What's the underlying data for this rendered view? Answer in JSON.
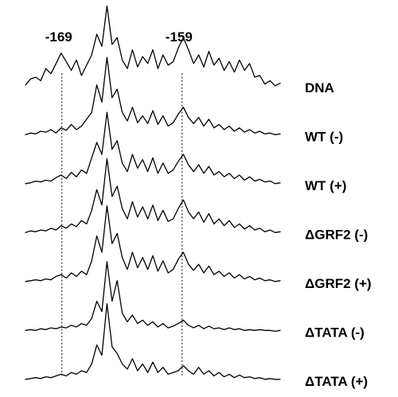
{
  "chart_data": {
    "type": "line",
    "title": "",
    "xlabel": "",
    "ylabel": "",
    "markers": [
      {
        "label": "-169",
        "x": 0.143
      },
      {
        "label": "-159",
        "x": 0.615
      }
    ],
    "x": [
      0,
      0.02,
      0.04,
      0.06,
      0.08,
      0.1,
      0.12,
      0.14,
      0.16,
      0.18,
      0.2,
      0.22,
      0.24,
      0.26,
      0.28,
      0.3,
      0.32,
      0.34,
      0.36,
      0.38,
      0.4,
      0.42,
      0.44,
      0.46,
      0.48,
      0.5,
      0.52,
      0.54,
      0.56,
      0.58,
      0.6,
      0.62,
      0.64,
      0.66,
      0.68,
      0.7,
      0.72,
      0.74,
      0.76,
      0.78,
      0.8,
      0.82,
      0.84,
      0.86,
      0.88,
      0.9,
      0.92,
      0.94,
      0.96,
      0.98,
      1.0
    ],
    "series": [
      {
        "name": "DNA",
        "values": [
          0.03,
          0.1,
          0.12,
          0.08,
          0.22,
          0.16,
          0.28,
          0.4,
          0.3,
          0.2,
          0.32,
          0.14,
          0.26,
          0.38,
          0.62,
          0.48,
          0.95,
          0.5,
          0.58,
          0.32,
          0.22,
          0.44,
          0.24,
          0.36,
          0.28,
          0.44,
          0.22,
          0.38,
          0.26,
          0.3,
          0.46,
          0.58,
          0.44,
          0.28,
          0.38,
          0.24,
          0.42,
          0.26,
          0.34,
          0.2,
          0.3,
          0.18,
          0.32,
          0.2,
          0.28,
          0.12,
          0.14,
          0.04,
          0.08,
          0.02,
          0.05
        ]
      },
      {
        "name": "WT (-)",
        "values": [
          0.02,
          0.04,
          0.03,
          0.06,
          0.05,
          0.08,
          0.04,
          0.1,
          0.07,
          0.14,
          0.08,
          0.12,
          0.2,
          0.28,
          0.6,
          0.4,
          0.92,
          0.45,
          0.55,
          0.28,
          0.18,
          0.34,
          0.16,
          0.24,
          0.15,
          0.3,
          0.14,
          0.24,
          0.12,
          0.16,
          0.26,
          0.34,
          0.22,
          0.15,
          0.22,
          0.12,
          0.2,
          0.1,
          0.14,
          0.08,
          0.12,
          0.06,
          0.1,
          0.05,
          0.08,
          0.04,
          0.06,
          0.03,
          0.04,
          0.02,
          0.03
        ]
      },
      {
        "name": "WT (+)",
        "values": [
          0.02,
          0.03,
          0.05,
          0.04,
          0.06,
          0.05,
          0.09,
          0.12,
          0.08,
          0.15,
          0.1,
          0.18,
          0.14,
          0.32,
          0.5,
          0.36,
          0.85,
          0.42,
          0.52,
          0.26,
          0.16,
          0.36,
          0.2,
          0.3,
          0.16,
          0.32,
          0.14,
          0.26,
          0.14,
          0.18,
          0.28,
          0.36,
          0.24,
          0.16,
          0.24,
          0.14,
          0.22,
          0.12,
          0.16,
          0.1,
          0.14,
          0.08,
          0.12,
          0.06,
          0.1,
          0.05,
          0.07,
          0.04,
          0.05,
          0.02,
          0.03
        ]
      },
      {
        "name": "ΔGRF2 (-)",
        "values": [
          0.02,
          0.04,
          0.03,
          0.05,
          0.04,
          0.07,
          0.05,
          0.1,
          0.07,
          0.12,
          0.09,
          0.16,
          0.12,
          0.28,
          0.52,
          0.34,
          0.88,
          0.44,
          0.56,
          0.3,
          0.18,
          0.38,
          0.2,
          0.32,
          0.18,
          0.34,
          0.16,
          0.28,
          0.15,
          0.18,
          0.3,
          0.4,
          0.26,
          0.18,
          0.26,
          0.14,
          0.24,
          0.12,
          0.18,
          0.1,
          0.16,
          0.08,
          0.12,
          0.06,
          0.1,
          0.05,
          0.07,
          0.03,
          0.05,
          0.02,
          0.03
        ]
      },
      {
        "name": "ΔGRF2 (+)",
        "values": [
          0.02,
          0.03,
          0.04,
          0.03,
          0.05,
          0.04,
          0.08,
          0.1,
          0.06,
          0.12,
          0.08,
          0.14,
          0.1,
          0.26,
          0.55,
          0.36,
          0.9,
          0.46,
          0.58,
          0.3,
          0.16,
          0.36,
          0.18,
          0.3,
          0.16,
          0.32,
          0.14,
          0.26,
          0.12,
          0.16,
          0.28,
          0.36,
          0.22,
          0.15,
          0.22,
          0.12,
          0.2,
          0.1,
          0.14,
          0.08,
          0.12,
          0.06,
          0.1,
          0.05,
          0.08,
          0.04,
          0.06,
          0.03,
          0.04,
          0.02,
          0.03
        ]
      },
      {
        "name": "ΔTATA (-)",
        "values": [
          0.02,
          0.03,
          0.02,
          0.04,
          0.03,
          0.05,
          0.04,
          0.06,
          0.05,
          0.08,
          0.06,
          0.1,
          0.08,
          0.16,
          0.36,
          0.24,
          0.82,
          0.36,
          0.6,
          0.22,
          0.12,
          0.2,
          0.1,
          0.14,
          0.08,
          0.12,
          0.06,
          0.1,
          0.05,
          0.07,
          0.1,
          0.14,
          0.08,
          0.05,
          0.08,
          0.04,
          0.07,
          0.04,
          0.05,
          0.03,
          0.05,
          0.03,
          0.04,
          0.02,
          0.03,
          0.02,
          0.03,
          0.02,
          0.02,
          0.01,
          0.02
        ]
      },
      {
        "name": "ΔTATA (+)",
        "values": [
          0.02,
          0.03,
          0.04,
          0.03,
          0.05,
          0.04,
          0.06,
          0.08,
          0.06,
          0.1,
          0.08,
          0.12,
          0.1,
          0.2,
          0.42,
          0.3,
          0.9,
          0.4,
          0.32,
          0.2,
          0.14,
          0.26,
          0.12,
          0.2,
          0.1,
          0.22,
          0.1,
          0.16,
          0.08,
          0.1,
          0.12,
          0.18,
          0.12,
          0.08,
          0.16,
          0.08,
          0.12,
          0.06,
          0.1,
          0.05,
          0.08,
          0.04,
          0.07,
          0.04,
          0.05,
          0.03,
          0.04,
          0.02,
          0.03,
          0.02,
          0.02
        ]
      }
    ]
  }
}
